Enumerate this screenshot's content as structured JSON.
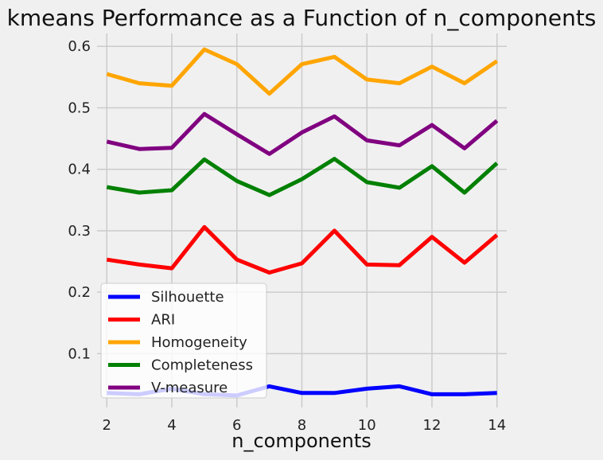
{
  "chart_data": {
    "type": "line",
    "title": "kmeans Performance as a Function of n_components",
    "xlabel": "n_components",
    "ylabel": "",
    "x": [
      2,
      3,
      4,
      5,
      6,
      7,
      8,
      9,
      10,
      11,
      12,
      13,
      14
    ],
    "xlim": [
      1.7,
      14.3
    ],
    "ylim": [
      0.0125,
      0.621
    ],
    "xticks": [
      2,
      4,
      6,
      8,
      10,
      12,
      14
    ],
    "yticks": [
      0.1,
      0.2,
      0.3,
      0.4,
      0.5,
      0.6
    ],
    "grid": true,
    "legend_position": "lower-left",
    "series": [
      {
        "name": "Silhouette",
        "color": "#0000ff",
        "values": [
          0.036,
          0.034,
          0.043,
          0.034,
          0.032,
          0.047,
          0.036,
          0.036,
          0.043,
          0.047,
          0.034,
          0.034,
          0.036
        ]
      },
      {
        "name": "ARI",
        "color": "#ff0000",
        "values": [
          0.253,
          0.245,
          0.239,
          0.306,
          0.253,
          0.232,
          0.247,
          0.3,
          0.245,
          0.244,
          0.29,
          0.248,
          0.293
        ]
      },
      {
        "name": "Homogeneity",
        "color": "#ffa500",
        "values": [
          0.555,
          0.54,
          0.536,
          0.595,
          0.571,
          0.523,
          0.571,
          0.583,
          0.546,
          0.54,
          0.567,
          0.54,
          0.576
        ]
      },
      {
        "name": "Completeness",
        "color": "#008000",
        "values": [
          0.371,
          0.362,
          0.366,
          0.416,
          0.381,
          0.358,
          0.384,
          0.417,
          0.379,
          0.37,
          0.405,
          0.362,
          0.41
        ]
      },
      {
        "name": "V-measure",
        "color": "#800080",
        "values": [
          0.445,
          0.433,
          0.435,
          0.49,
          0.457,
          0.425,
          0.46,
          0.486,
          0.447,
          0.439,
          0.472,
          0.434,
          0.479
        ]
      }
    ]
  }
}
